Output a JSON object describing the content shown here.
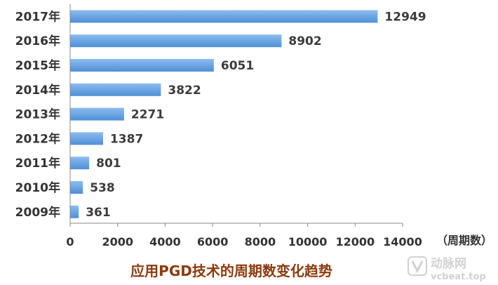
{
  "chart_data": {
    "type": "bar",
    "orientation": "horizontal",
    "title": "应用PGD技术的周期数变化趋势",
    "xlabel": "（周期数）",
    "ylabel": "",
    "xlim": [
      0,
      14000
    ],
    "x_ticks": [
      0,
      2000,
      4000,
      6000,
      8000,
      10000,
      12000,
      14000
    ],
    "categories": [
      "2017年",
      "2016年",
      "2015年",
      "2014年",
      "2013年",
      "2012年",
      "2011年",
      "2010年",
      "2009年"
    ],
    "values": [
      12949,
      8902,
      6051,
      3822,
      2271,
      1387,
      801,
      538,
      361
    ],
    "data_labels": true,
    "grid": false,
    "legend": "none"
  },
  "colors": {
    "bar": "#4f8fd6",
    "bar_light": "#8bbcef",
    "title": "#8b3b0e",
    "axis": "#888888"
  },
  "watermark": {
    "logo_text": "动脉网",
    "url_text": "vcbeat.top"
  }
}
